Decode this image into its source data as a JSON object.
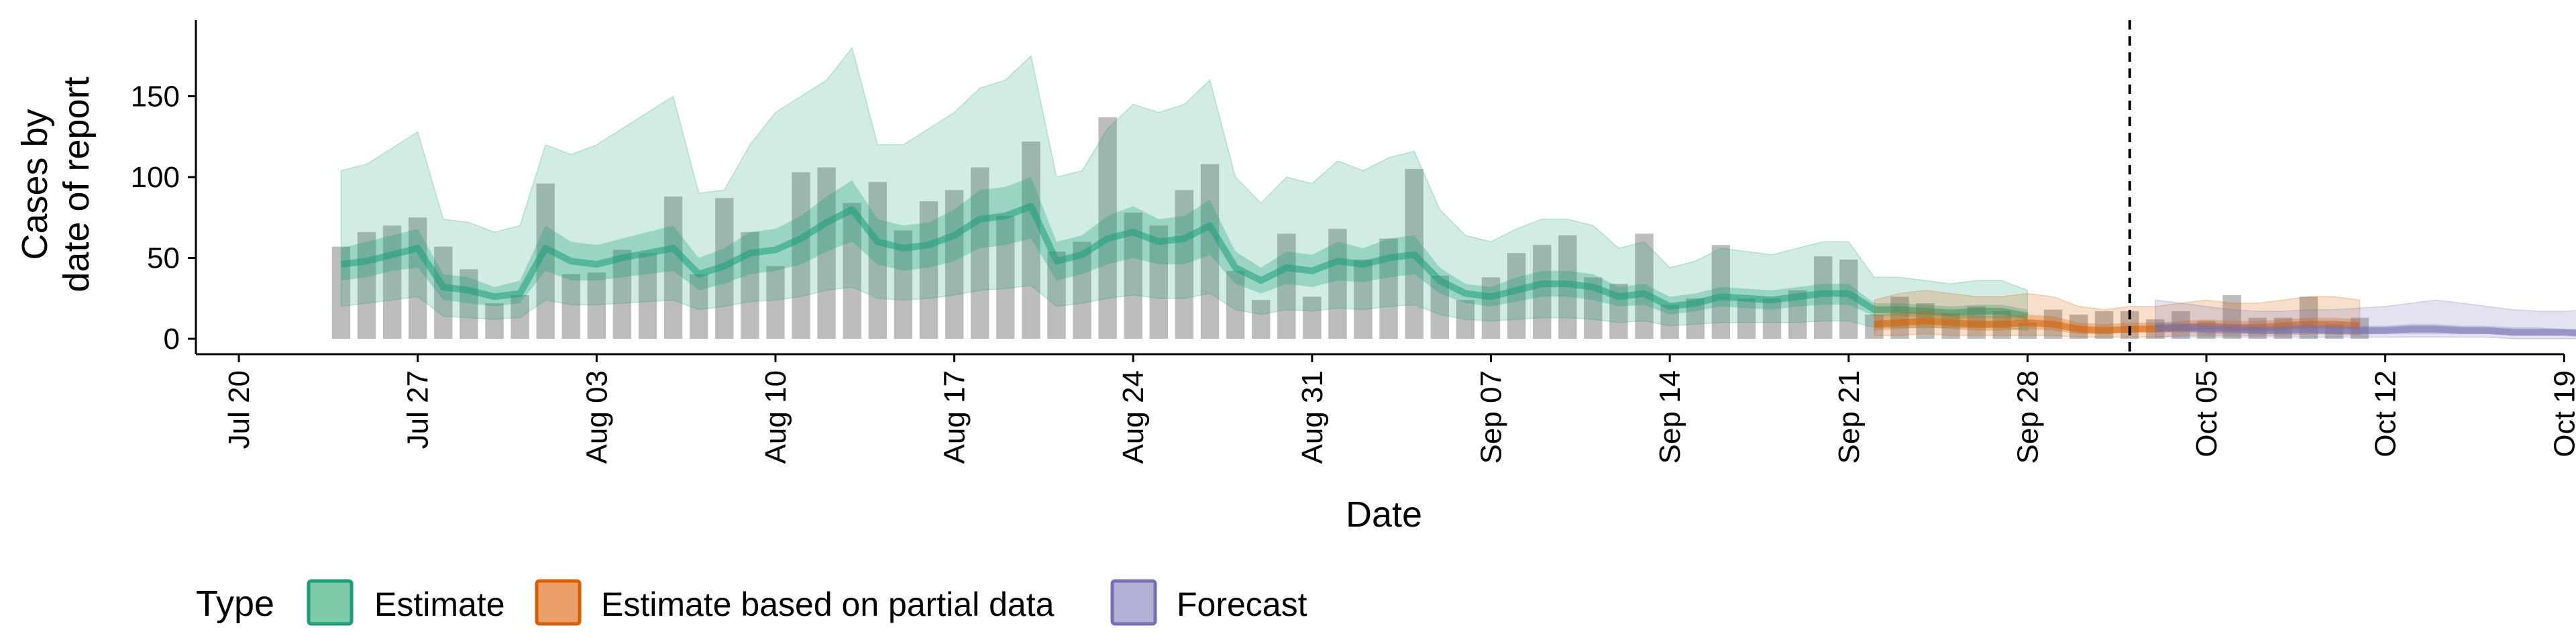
{
  "chart_data": {
    "type": "area",
    "xlabel": "Date",
    "ylabel_lines": [
      "Cases by",
      "date of report"
    ],
    "ylim": [
      0,
      195
    ],
    "yticks": [
      0,
      50,
      100,
      150
    ],
    "xlim": [
      "2020-07-19",
      "2020-10-20"
    ],
    "xticks": [
      {
        "date": "2020-07-20",
        "label": "Jul 20"
      },
      {
        "date": "2020-07-27",
        "label": "Jul 27"
      },
      {
        "date": "2020-08-03",
        "label": "Aug 03"
      },
      {
        "date": "2020-08-10",
        "label": "Aug 10"
      },
      {
        "date": "2020-08-17",
        "label": "Aug 17"
      },
      {
        "date": "2020-08-24",
        "label": "Aug 24"
      },
      {
        "date": "2020-08-31",
        "label": "Aug 31"
      },
      {
        "date": "2020-09-07",
        "label": "Sep 07"
      },
      {
        "date": "2020-09-14",
        "label": "Sep 14"
      },
      {
        "date": "2020-09-21",
        "label": "Sep 21"
      },
      {
        "date": "2020-09-28",
        "label": "Sep 28"
      },
      {
        "date": "2020-10-05",
        "label": "Oct 05"
      },
      {
        "date": "2020-10-12",
        "label": "Oct 12"
      },
      {
        "date": "2020-10-19",
        "label": "Oct 19"
      }
    ],
    "vline_date": "2020-10-02",
    "bar_start_date": "2020-07-24",
    "bars": [
      57,
      66,
      70,
      75,
      57,
      43,
      22,
      27,
      96,
      40,
      41,
      55,
      53,
      88,
      40,
      87,
      66,
      45,
      103,
      106,
      84,
      97,
      67,
      85,
      92,
      106,
      76,
      122,
      54,
      60,
      137,
      78,
      70,
      92,
      108,
      42,
      24,
      65,
      26,
      68,
      49,
      62,
      105,
      39,
      24,
      38,
      53,
      58,
      64,
      38,
      34,
      65,
      21,
      25,
      58,
      25,
      25,
      30,
      51,
      49,
      15,
      26,
      22,
      16,
      20,
      17,
      10,
      18,
      15,
      17,
      17,
      12,
      17,
      11,
      27,
      13,
      13,
      26,
      9,
      13
    ],
    "series": [
      {
        "name": "Estimate",
        "color": "#1b9e77",
        "start_date": "2020-07-24",
        "median": [
          46,
          48,
          52,
          56,
          32,
          30,
          26,
          28,
          56,
          48,
          46,
          50,
          53,
          56,
          40,
          45,
          53,
          55,
          62,
          72,
          80,
          60,
          56,
          58,
          64,
          74,
          76,
          82,
          48,
          52,
          62,
          66,
          60,
          62,
          70,
          44,
          36,
          44,
          42,
          48,
          46,
          50,
          52,
          36,
          28,
          26,
          30,
          34,
          34,
          32,
          26,
          28,
          20,
          22,
          26,
          25,
          24,
          26,
          28,
          28,
          18,
          18,
          17,
          16,
          17,
          17,
          14
        ],
        "lower50": [
          36,
          38,
          42,
          44,
          24,
          22,
          20,
          22,
          42,
          36,
          36,
          38,
          40,
          42,
          30,
          34,
          40,
          42,
          46,
          54,
          60,
          46,
          42,
          44,
          48,
          56,
          58,
          62,
          36,
          40,
          46,
          50,
          46,
          46,
          52,
          34,
          28,
          34,
          32,
          36,
          35,
          38,
          40,
          28,
          22,
          20,
          23,
          26,
          26,
          24,
          20,
          21,
          15,
          17,
          20,
          19,
          18,
          20,
          21,
          21,
          14,
          14,
          13,
          12,
          13,
          13,
          10
        ],
        "upper50": [
          56,
          60,
          64,
          68,
          40,
          38,
          32,
          36,
          70,
          60,
          58,
          62,
          66,
          70,
          50,
          56,
          66,
          68,
          76,
          88,
          98,
          74,
          70,
          72,
          80,
          92,
          94,
          100,
          60,
          64,
          76,
          82,
          74,
          76,
          86,
          54,
          44,
          54,
          52,
          60,
          56,
          62,
          64,
          44,
          34,
          32,
          38,
          42,
          42,
          40,
          32,
          34,
          26,
          28,
          32,
          31,
          30,
          32,
          34,
          34,
          22,
          22,
          21,
          20,
          21,
          21,
          18
        ],
        "lower90": [
          20,
          22,
          24,
          26,
          14,
          13,
          12,
          13,
          24,
          21,
          21,
          22,
          23,
          24,
          18,
          20,
          23,
          24,
          26,
          30,
          32,
          25,
          24,
          25,
          27,
          30,
          31,
          33,
          20,
          22,
          25,
          27,
          25,
          25,
          28,
          18,
          15,
          18,
          17,
          19,
          18,
          20,
          21,
          15,
          12,
          11,
          12,
          13,
          13,
          12,
          10,
          11,
          8,
          9,
          10,
          10,
          10,
          10,
          11,
          11,
          7,
          7,
          7,
          7,
          7,
          7,
          5
        ],
        "upper90": [
          104,
          108,
          118,
          128,
          74,
          72,
          66,
          70,
          120,
          114,
          120,
          130,
          140,
          150,
          90,
          92,
          120,
          140,
          150,
          160,
          180,
          120,
          120,
          130,
          140,
          155,
          160,
          175,
          100,
          104,
          130,
          145,
          140,
          145,
          160,
          100,
          84,
          100,
          96,
          110,
          104,
          112,
          116,
          80,
          64,
          60,
          68,
          74,
          74,
          70,
          56,
          60,
          44,
          48,
          56,
          54,
          52,
          56,
          60,
          60,
          38,
          38,
          36,
          34,
          36,
          36,
          30
        ]
      },
      {
        "name": "Estimate based on partial data",
        "color": "#d95f02",
        "start_date": "2020-09-22",
        "median": [
          9,
          10,
          11,
          10,
          9,
          9,
          10,
          9,
          6,
          5,
          6,
          6,
          7,
          8,
          7,
          7,
          8,
          9,
          9,
          8
        ],
        "lower50": [
          5,
          6,
          7,
          6,
          5,
          5,
          6,
          5,
          3,
          3,
          4,
          4,
          4,
          5,
          4,
          4,
          5,
          6,
          6,
          5
        ],
        "upper50": [
          14,
          16,
          17,
          15,
          14,
          14,
          15,
          14,
          10,
          9,
          10,
          10,
          11,
          12,
          11,
          11,
          12,
          13,
          13,
          12
        ],
        "lower90": [
          2,
          2,
          3,
          2,
          2,
          2,
          2,
          2,
          1,
          1,
          1,
          1,
          2,
          2,
          2,
          2,
          2,
          3,
          3,
          2
        ],
        "upper90": [
          24,
          28,
          30,
          28,
          26,
          26,
          28,
          26,
          20,
          18,
          20,
          20,
          22,
          24,
          22,
          22,
          24,
          26,
          26,
          24
        ]
      },
      {
        "name": "Forecast",
        "color": "#7570b3",
        "start_date": "2020-10-03",
        "median": [
          7,
          7,
          6,
          6,
          5,
          5,
          6,
          5,
          5,
          5,
          6,
          6,
          5,
          5,
          4,
          4,
          4,
          3,
          3,
          3,
          3
        ],
        "lower50": [
          4,
          4,
          3,
          3,
          3,
          3,
          3,
          3,
          3,
          3,
          3,
          3,
          3,
          3,
          2,
          2,
          2,
          2,
          2,
          2,
          2
        ],
        "upper50": [
          10,
          10,
          9,
          9,
          8,
          8,
          9,
          8,
          8,
          8,
          9,
          9,
          8,
          8,
          7,
          7,
          6,
          6,
          6,
          6,
          6
        ],
        "lower90": [
          1,
          1,
          1,
          1,
          1,
          1,
          1,
          1,
          1,
          1,
          1,
          1,
          1,
          1,
          0,
          0,
          0,
          0,
          0,
          0,
          0
        ],
        "upper90": [
          24,
          22,
          20,
          18,
          17,
          17,
          18,
          18,
          19,
          20,
          22,
          24,
          22,
          20,
          18,
          17,
          17,
          18,
          19,
          20,
          21
        ]
      }
    ]
  },
  "legend": {
    "title": "Type",
    "items": [
      {
        "label": "Estimate",
        "fill": "#7fcaa9",
        "stroke": "#1b9e77"
      },
      {
        "label": "Estimate based on partial data",
        "fill": "#eca069",
        "stroke": "#d95f02"
      },
      {
        "label": "Forecast",
        "fill": "#b3b1d6",
        "stroke": "#7570b3"
      }
    ]
  }
}
